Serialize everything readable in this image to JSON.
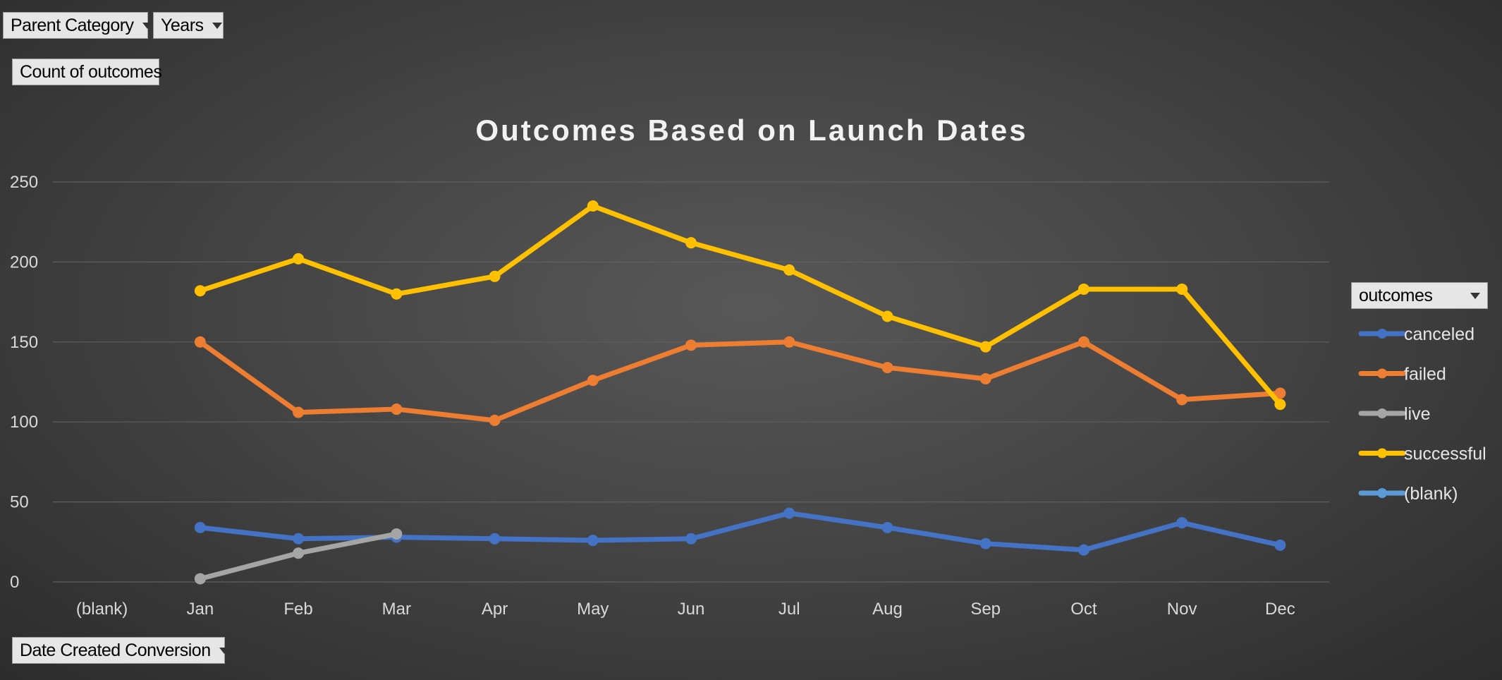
{
  "filters": {
    "parent_category": "Parent Category",
    "years": "Years",
    "values_field": "Count of outcomes",
    "axis_field": "Date Created Conversion",
    "legend_field": "outcomes"
  },
  "colors": {
    "canceled": "#4472c4",
    "failed": "#ed7d31",
    "live": "#a5a5a5",
    "successful": "#ffc000",
    "blank": "#5b9bd5",
    "grid": "#5f5f5f"
  },
  "chart_data": {
    "type": "line",
    "title": "Outcomes Based on Launch Dates",
    "xlabel": "",
    "ylabel": "",
    "categories": [
      "(blank)",
      "Jan",
      "Feb",
      "Mar",
      "Apr",
      "May",
      "Jun",
      "Jul",
      "Aug",
      "Sep",
      "Oct",
      "Nov",
      "Dec"
    ],
    "ylim": [
      0,
      250
    ],
    "yticks": [
      0,
      50,
      100,
      150,
      200,
      250
    ],
    "grid": true,
    "legend_position": "right",
    "series": [
      {
        "name": "canceled",
        "values": [
          null,
          34,
          27,
          28,
          27,
          26,
          27,
          43,
          34,
          24,
          20,
          37,
          23
        ]
      },
      {
        "name": "failed",
        "values": [
          null,
          150,
          106,
          108,
          101,
          126,
          148,
          150,
          134,
          127,
          150,
          114,
          118
        ]
      },
      {
        "name": "live",
        "values": [
          null,
          2,
          18,
          30,
          null,
          null,
          null,
          null,
          null,
          null,
          null,
          null,
          null
        ]
      },
      {
        "name": "successful",
        "values": [
          null,
          182,
          202,
          180,
          191,
          235,
          212,
          195,
          166,
          147,
          183,
          183,
          111
        ]
      },
      {
        "name": "(blank)",
        "values": [
          null,
          null,
          null,
          null,
          null,
          null,
          null,
          null,
          null,
          null,
          null,
          null,
          null
        ]
      }
    ]
  }
}
